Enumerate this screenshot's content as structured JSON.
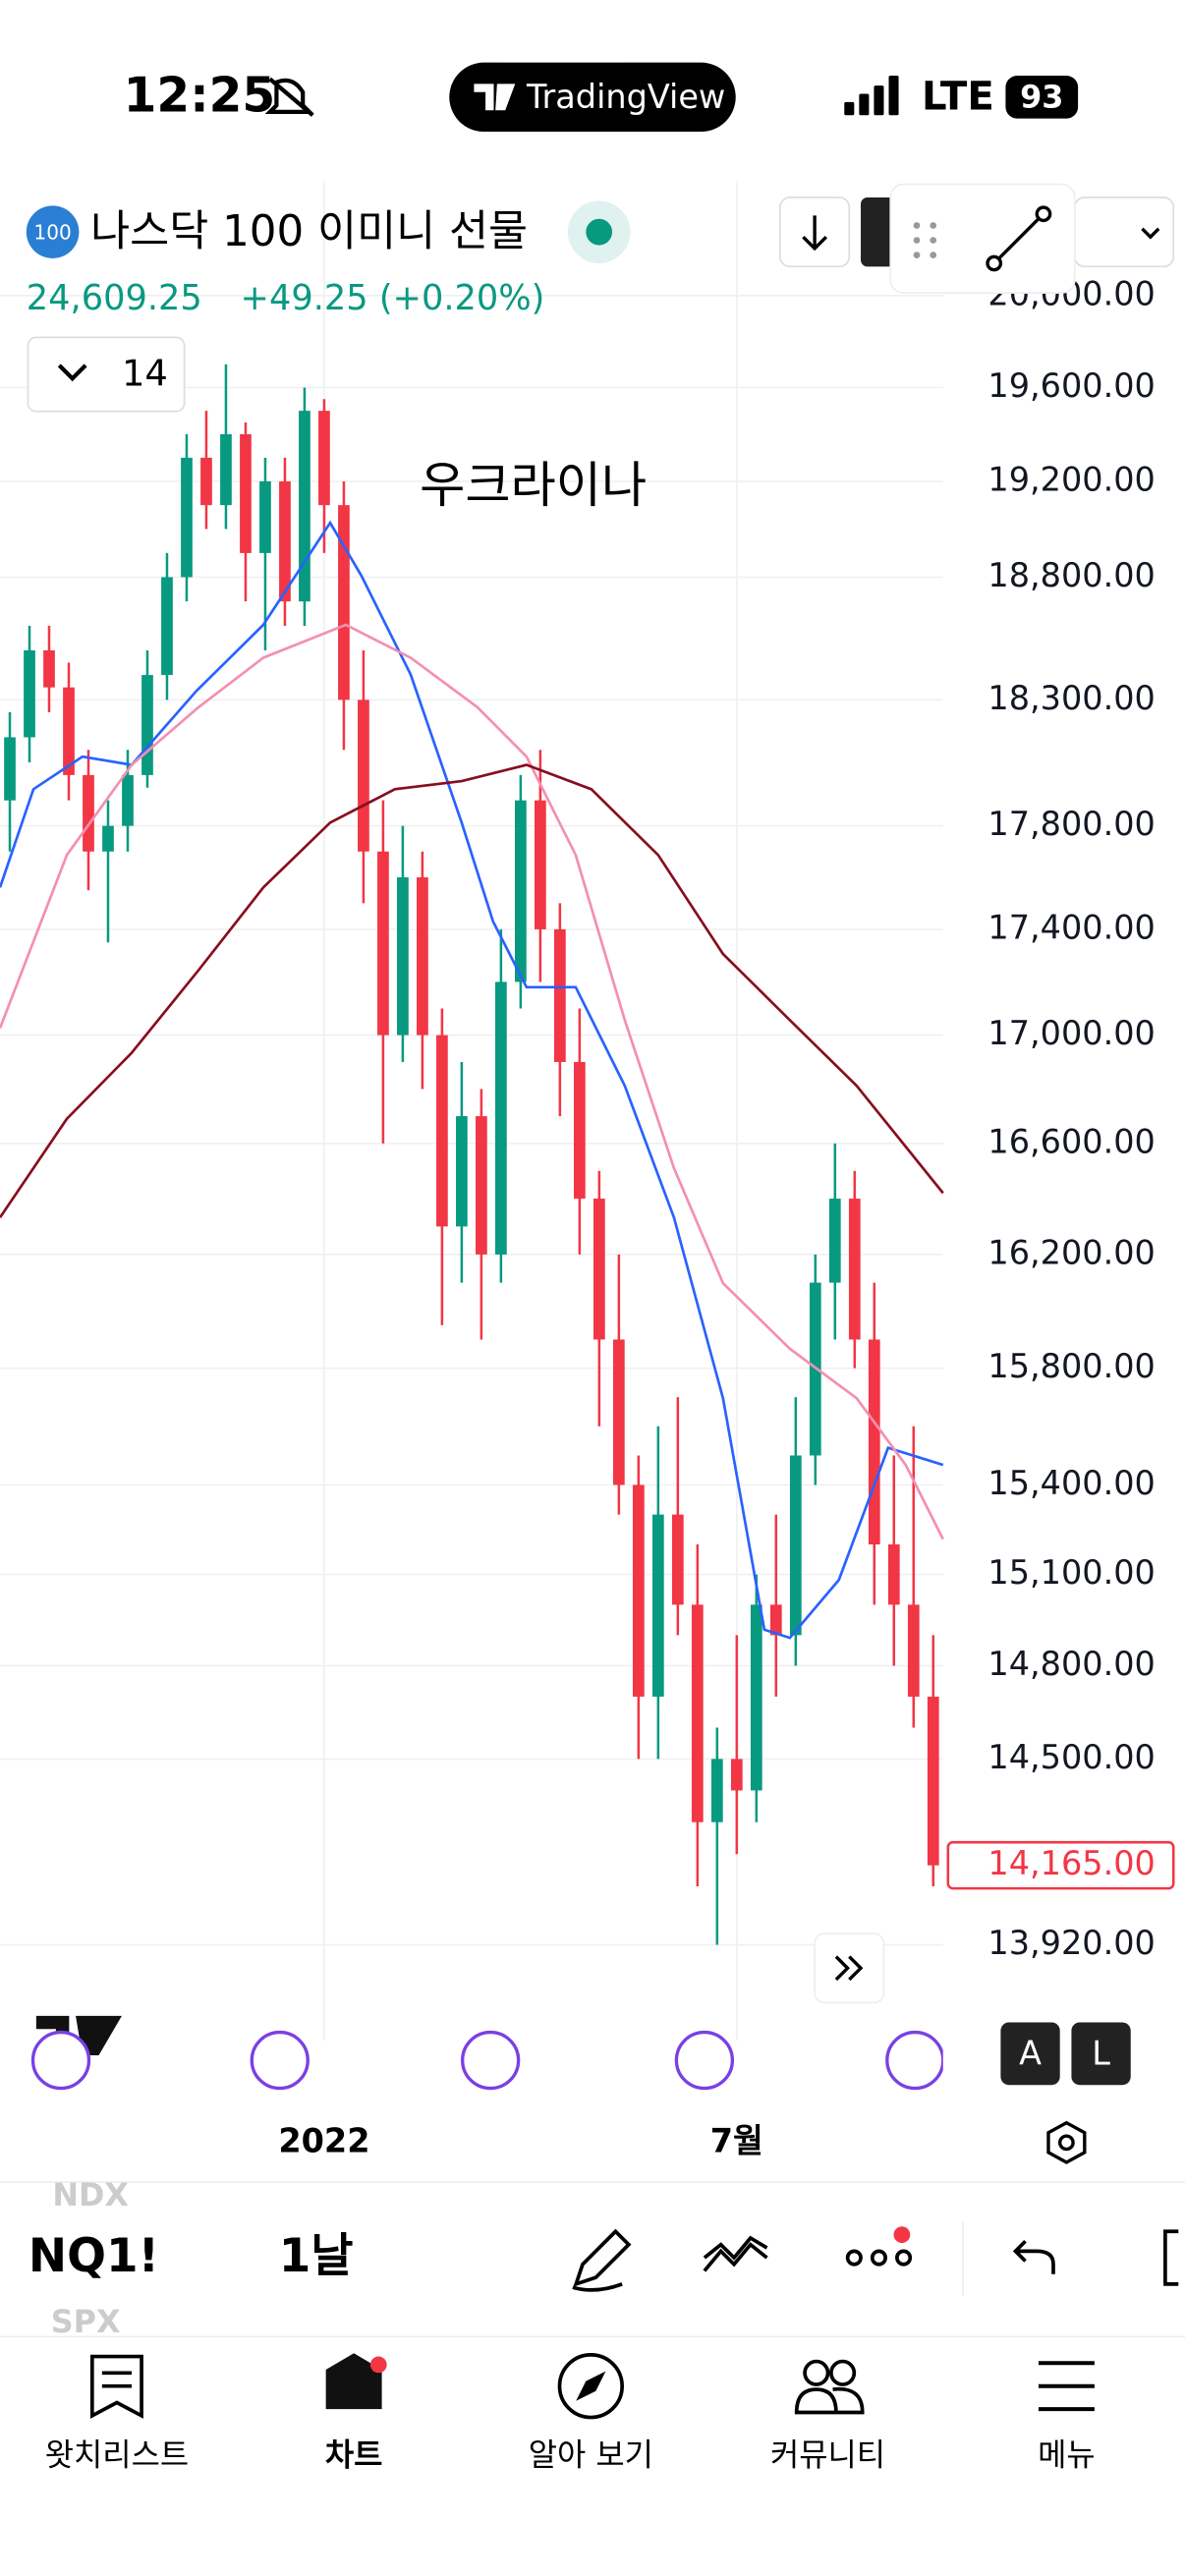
{
  "status_bar": {
    "time": "12:25",
    "app": "TradingView",
    "network": "LTE",
    "battery": "93"
  },
  "header": {
    "badge": "100",
    "symbol_name": "나스닥 100 이미니 선물",
    "price": "24,609.25",
    "change": "+49.25 (+0.20%)",
    "interval_count": "14"
  },
  "chart_data": {
    "type": "candlestick",
    "annotation": "우크라이나",
    "log_scale": true,
    "grid": true,
    "up_color": "#089981",
    "down_color": "#f23645",
    "categories": [
      null,
      null,
      null,
      null,
      null,
      null,
      null,
      null,
      null,
      null,
      null,
      null,
      null,
      null,
      null,
      null,
      "2022",
      null,
      null,
      null,
      null,
      null,
      null,
      null,
      null,
      null,
      null,
      null,
      null,
      null,
      null,
      null,
      null,
      null,
      null,
      null,
      null,
      "7월",
      null,
      null,
      null,
      null,
      null,
      null,
      null,
      null,
      null,
      null
    ],
    "open": [
      17900,
      18150,
      18500,
      18350,
      18000,
      17700,
      17800,
      18000,
      18400,
      18800,
      19300,
      19100,
      19400,
      18900,
      19200,
      18700,
      19500,
      19100,
      18300,
      17700,
      17000,
      17600,
      17000,
      16300,
      16700,
      16200,
      17200,
      17900,
      17400,
      16900,
      16400,
      15900,
      15400,
      14700,
      15300,
      15000,
      14300,
      14500,
      14400,
      15000,
      14900,
      15500,
      16100,
      16400,
      15900,
      15200,
      15000,
      14700
    ],
    "high": [
      18250,
      18600,
      18600,
      18450,
      18100,
      17900,
      18100,
      18500,
      18900,
      19400,
      19500,
      19700,
      19450,
      19300,
      19300,
      19600,
      19550,
      19200,
      18500,
      17900,
      17800,
      17700,
      17100,
      16900,
      16800,
      17400,
      18000,
      18100,
      17500,
      17100,
      16500,
      16200,
      15500,
      15600,
      15700,
      15200,
      14600,
      14900,
      15100,
      15300,
      15700,
      16200,
      16600,
      16500,
      16100,
      15500,
      15600,
      14900
    ],
    "low": [
      17700,
      18050,
      18250,
      17900,
      17550,
      17350,
      17700,
      17950,
      18300,
      18700,
      19000,
      19000,
      18700,
      18500,
      18600,
      18600,
      18900,
      18100,
      17500,
      16600,
      16900,
      16800,
      15950,
      16100,
      15900,
      16100,
      17100,
      17200,
      16700,
      16200,
      15600,
      15300,
      14500,
      14500,
      14900,
      14100,
      13920,
      14200,
      14300,
      14700,
      14800,
      15400,
      15900,
      15800,
      15000,
      14800,
      14600,
      14100
    ],
    "close": [
      18150,
      18500,
      18350,
      18000,
      17700,
      17800,
      18000,
      18400,
      18800,
      19300,
      19100,
      19400,
      18900,
      19200,
      18700,
      19500,
      19100,
      18300,
      17700,
      17000,
      17600,
      17000,
      16300,
      16700,
      16200,
      17200,
      17900,
      17400,
      16900,
      16400,
      15900,
      15400,
      14700,
      15300,
      15000,
      14300,
      14500,
      14400,
      15000,
      14900,
      15500,
      16100,
      16400,
      15900,
      15200,
      15000,
      14700,
      14165
    ],
    "overlays": [
      {
        "color": "#2962ff",
        "x": [
          -0.5,
          1.2,
          3.7,
          6.2,
          9.5,
          12.9,
          16.3,
          17.9,
          20.4,
          23,
          24.6,
          26.3,
          28.8,
          31.3,
          33.8,
          36.3,
          38.4,
          39.7,
          42.2,
          44.7,
          47.5
        ],
        "values": [
          17561,
          17944,
          18073,
          18040,
          18336,
          18604,
          19026,
          18806,
          18402,
          17813,
          17430,
          17180,
          17180,
          16812,
          16332,
          15696,
          14918,
          14891,
          15082,
          15526,
          15468
        ]
      },
      {
        "color": "#f48fb1",
        "x": [
          -0.5,
          2.9,
          6.2,
          9.6,
          12.9,
          17.1,
          20.4,
          23.8,
          26.3,
          28.8,
          31.3,
          33.8,
          36.3,
          39.7,
          43.1,
          45.6,
          47.5
        ],
        "values": [
          17026,
          17686,
          18040,
          18270,
          18470,
          18604,
          18470,
          18270,
          18073,
          17686,
          17056,
          16510,
          16098,
          15868,
          15696,
          15468,
          15218
        ]
      },
      {
        "color": "#880e1f",
        "x": [
          -0.5,
          2.9,
          6.2,
          9.6,
          12.9,
          16.3,
          19.6,
          23,
          26.3,
          29.6,
          33,
          36.3,
          39.7,
          43.1,
          47.5
        ],
        "values": [
          16332,
          16690,
          16934,
          17244,
          17561,
          17813,
          17944,
          17976,
          18040,
          17944,
          17686,
          17306,
          17056,
          16812,
          16420
        ]
      }
    ],
    "ylim": [
      13630,
      20510
    ],
    "yticks": [
      {
        "value": 20000,
        "label": "20,000.00"
      },
      {
        "value": 19600,
        "label": "19,600.00"
      },
      {
        "value": 19200,
        "label": "19,200.00"
      },
      {
        "value": 18800,
        "label": "18,800.00"
      },
      {
        "value": 18300,
        "label": "18,300.00"
      },
      {
        "value": 17800,
        "label": "17,800.00"
      },
      {
        "value": 17400,
        "label": "17,400.00"
      },
      {
        "value": 17000,
        "label": "17,000.00"
      },
      {
        "value": 16600,
        "label": "16,600.00"
      },
      {
        "value": 16200,
        "label": "16,200.00"
      },
      {
        "value": 15800,
        "label": "15,800.00"
      },
      {
        "value": 15400,
        "label": "15,400.00"
      },
      {
        "value": 15100,
        "label": "15,100.00"
      },
      {
        "value": 14800,
        "label": "14,800.00"
      },
      {
        "value": 14500,
        "label": "14,500.00"
      },
      {
        "value": 13920,
        "label": "13,920.00"
      }
    ],
    "price_line": {
      "value": 14165,
      "label": "14,165.00",
      "color": "#f23645"
    }
  },
  "toolbar": {
    "above": "NDX",
    "symbol": "NQ1!",
    "below": "SPX",
    "interval": "1날"
  },
  "scale_buttons": [
    "A",
    "L"
  ],
  "tabs": [
    "왓치리스트",
    "차트",
    "알아 보기",
    "커뮤니티",
    "메뉴"
  ]
}
